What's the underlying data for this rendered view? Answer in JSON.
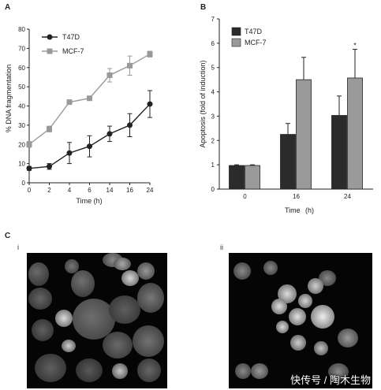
{
  "panels": {
    "a": "A",
    "b": "B",
    "c": "C"
  },
  "subpanels": {
    "i": "i",
    "ii": "ii"
  },
  "watermark": "快传号 / 陶木生物",
  "chart_data": [
    {
      "type": "line",
      "ylabel": "% DNA fragmentation",
      "xlabel": "Time (h)",
      "categories": [
        "0",
        "2",
        "4",
        "6",
        "14",
        "16",
        "24"
      ],
      "ylim": [
        0,
        80
      ],
      "yticks": [
        "0",
        "10",
        "20",
        "30",
        "40",
        "50",
        "60",
        "70",
        "80"
      ],
      "legend_position": "top-left",
      "series": [
        {
          "name": "T47D",
          "marker": "circle",
          "color": "#222222",
          "values": [
            7.5,
            8.5,
            15.5,
            19,
            25.5,
            30,
            41
          ],
          "errors": [
            1,
            1.5,
            5.5,
            5.5,
            4,
            6,
            7
          ]
        },
        {
          "name": "MCF-7",
          "marker": "square",
          "color": "#999999",
          "values": [
            20,
            28,
            42,
            44,
            56,
            61,
            67
          ],
          "errors": [
            1.5,
            1.5,
            1,
            1,
            3.5,
            5,
            1.5
          ]
        }
      ]
    },
    {
      "type": "bar",
      "ylabel": "Apoptosis (fold of induction)",
      "xlabel": "Time",
      "xlabel_unit": "(h)",
      "categories": [
        "0",
        "16",
        "24"
      ],
      "ylim": [
        0,
        7
      ],
      "yticks": [
        "0",
        "1",
        "2",
        "3",
        "4",
        "5",
        "6",
        "7"
      ],
      "legend_position": "top-left",
      "annotation": "*",
      "series": [
        {
          "name": "T47D",
          "color": "#2b2b2b",
          "values": [
            0.97,
            2.25,
            3.03
          ],
          "errors": [
            0.03,
            0.45,
            0.8
          ]
        },
        {
          "name": "MCF-7",
          "color": "#9a9a9a",
          "values": [
            0.97,
            4.5,
            4.57
          ],
          "errors": [
            0.03,
            0.92,
            1.18
          ]
        }
      ]
    }
  ]
}
